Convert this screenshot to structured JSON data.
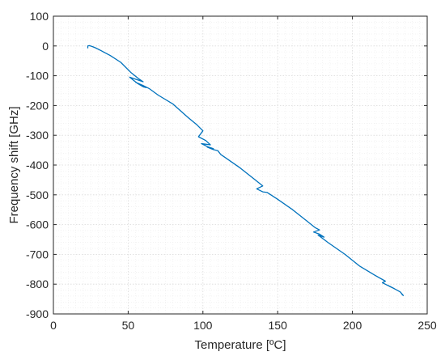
{
  "chart_data": {
    "type": "line",
    "xlabel": "Temperature [ºC]",
    "ylabel": "Frequency shift [GHz]",
    "xlim": [
      0,
      250
    ],
    "ylim": [
      -900,
      100
    ],
    "x_ticks": [
      0,
      50,
      100,
      150,
      200,
      250
    ],
    "y_ticks": [
      -900,
      -800,
      -700,
      -600,
      -500,
      -400,
      -300,
      -200,
      -100,
      0,
      100
    ],
    "grid": true,
    "minor_grid": true,
    "series": [
      {
        "color": "#0072bd",
        "points": [
          [
            23,
            -8
          ],
          [
            23,
            0
          ],
          [
            24,
            1
          ],
          [
            26,
            -2
          ],
          [
            28,
            -6
          ],
          [
            32,
            -16
          ],
          [
            38,
            -32
          ],
          [
            45,
            -55
          ],
          [
            52,
            -90
          ],
          [
            57,
            -110
          ],
          [
            60,
            -120
          ],
          [
            51,
            -105
          ],
          [
            56,
            -125
          ],
          [
            60,
            -137
          ],
          [
            62,
            -140
          ],
          [
            55,
            -122
          ],
          [
            60,
            -133
          ],
          [
            64,
            -143
          ],
          [
            70,
            -165
          ],
          [
            80,
            -195
          ],
          [
            90,
            -240
          ],
          [
            96,
            -265
          ],
          [
            100,
            -285
          ],
          [
            97,
            -305
          ],
          [
            102,
            -318
          ],
          [
            105,
            -332
          ],
          [
            99,
            -328
          ],
          [
            103,
            -338
          ],
          [
            107,
            -345
          ],
          [
            103,
            -340
          ],
          [
            107,
            -348
          ],
          [
            110,
            -352
          ],
          [
            112,
            -365
          ],
          [
            115,
            -375
          ],
          [
            125,
            -410
          ],
          [
            135,
            -450
          ],
          [
            140,
            -470
          ],
          [
            136,
            -480
          ],
          [
            140,
            -490
          ],
          [
            143,
            -492
          ],
          [
            150,
            -515
          ],
          [
            160,
            -550
          ],
          [
            170,
            -590
          ],
          [
            175,
            -610
          ],
          [
            178,
            -618
          ],
          [
            174,
            -625
          ],
          [
            178,
            -632
          ],
          [
            181,
            -642
          ],
          [
            177,
            -635
          ],
          [
            181,
            -650
          ],
          [
            183,
            -658
          ],
          [
            185,
            -665
          ],
          [
            195,
            -700
          ],
          [
            205,
            -740
          ],
          [
            215,
            -770
          ],
          [
            222,
            -790
          ],
          [
            220,
            -795
          ],
          [
            225,
            -808
          ],
          [
            228,
            -815
          ],
          [
            224,
            -805
          ],
          [
            229,
            -818
          ],
          [
            232,
            -826
          ],
          [
            234,
            -838
          ],
          [
            233,
            -834
          ]
        ]
      }
    ]
  }
}
